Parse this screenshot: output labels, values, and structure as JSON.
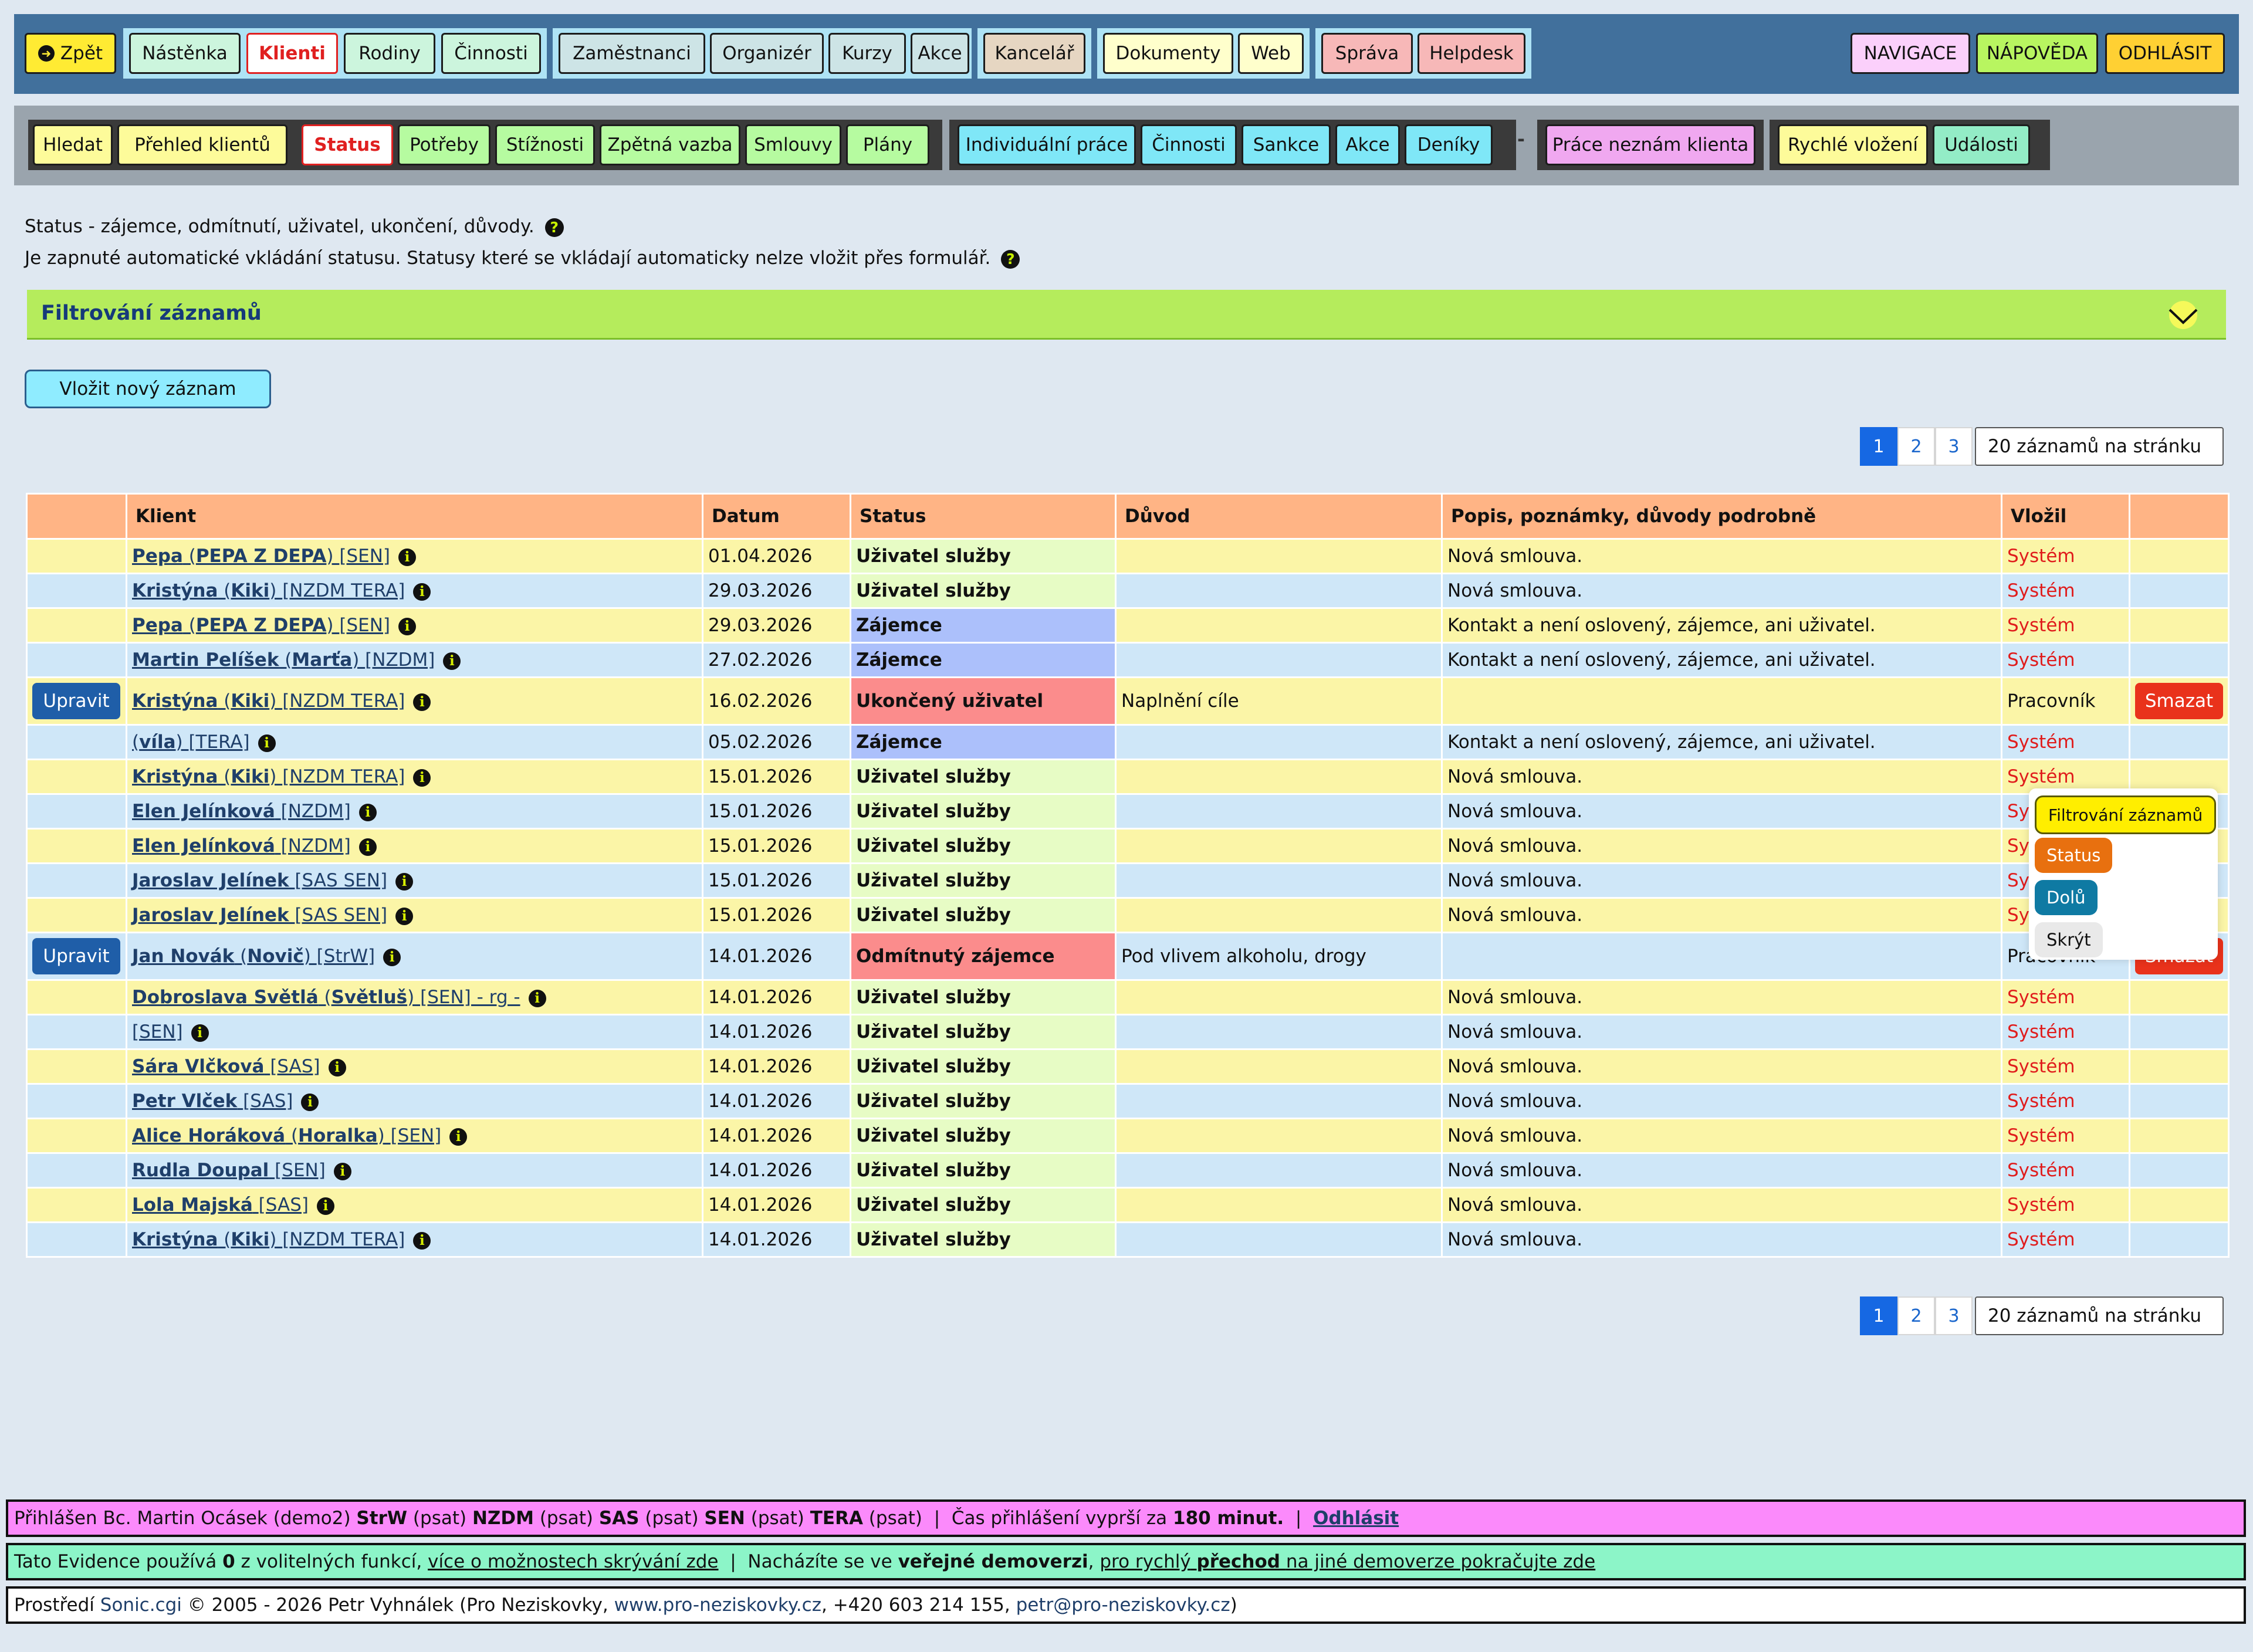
{
  "nav": {
    "back": "Zpět",
    "group1": [
      "Nástěnka",
      "Klienti",
      "Rodiny",
      "Činnosti"
    ],
    "group2": [
      "Zaměstnanci",
      "Organizér",
      "Kurzy",
      "Akce"
    ],
    "group3": [
      "Kancelář"
    ],
    "group4": [
      "Dokumenty",
      "Web"
    ],
    "group5": [
      "Správa",
      "Helpdesk"
    ],
    "right": [
      "NAVIGACE",
      "NÁPOVĚDA",
      "ODHLÁSIT"
    ]
  },
  "subnav": {
    "g1": [
      "Hledat",
      "Přehled klientů"
    ],
    "g2": [
      "Status",
      "Potřeby",
      "Stížnosti",
      "Zpětná vazba",
      "Smlouvy",
      "Plány"
    ],
    "g3": [
      "Individuální práce",
      "Činnosti",
      "Sankce",
      "Akce",
      "Deníky"
    ],
    "separator": "-",
    "g4": [
      "Práce neznám klienta"
    ],
    "g5": [
      "Rychlé vložení",
      "Události"
    ]
  },
  "info": {
    "line1": "Status - zájemce, odmítnutí, uživatel, ukončení, důvody.",
    "line2": "Je zapnuté automatické vkládání statusu. Statusy které se vkládají automaticky nelze vložit přes formulář.",
    "help": "?"
  },
  "filter": {
    "title": "Filtrování záznamů"
  },
  "insert_button": "Vložit nový záznam",
  "pager": {
    "pages": [
      "1",
      "2",
      "3"
    ],
    "active": "1",
    "per_page": "20 záznamů na stránku"
  },
  "table": {
    "headers": [
      "",
      "Klient",
      "Datum",
      "Status",
      "Důvod",
      "Popis, poznámky, důvody podrobně",
      "Vložil",
      ""
    ],
    "edit_label": "Upravit",
    "delete_label": "Smazat",
    "info_icon": "i",
    "rows": [
      {
        "name": "Pepa",
        "nick": "PEPA Z DEPA",
        "tags": "[SEN]",
        "date": "01.04.2026",
        "status": "Uživatel služby",
        "st": "user",
        "reason": "",
        "desc": "Nová smlouva.",
        "by": "Systém",
        "actions": false
      },
      {
        "name": "Kristýna",
        "nick": "Kiki",
        "tags": "[NZDM TERA]",
        "date": "29.03.2026",
        "status": "Uživatel služby",
        "st": "user",
        "reason": "",
        "desc": "Nová smlouva.",
        "by": "Systém",
        "actions": false
      },
      {
        "name": "Pepa",
        "nick": "PEPA Z DEPA",
        "tags": "[SEN]",
        "date": "29.03.2026",
        "status": "Zájemce",
        "st": "zaj",
        "reason": "",
        "desc": "Kontakt a není oslovený, zájemce, ani uživatel.",
        "by": "Systém",
        "actions": false
      },
      {
        "name": "Martin Pelíšek",
        "nick": "Marťa",
        "tags": "[NZDM]",
        "date": "27.02.2026",
        "status": "Zájemce",
        "st": "zaj",
        "reason": "",
        "desc": "Kontakt a není oslovený, zájemce, ani uživatel.",
        "by": "Systém",
        "actions": false
      },
      {
        "name": "Kristýna",
        "nick": "Kiki",
        "tags": "[NZDM TERA]",
        "date": "16.02.2026",
        "status": "Ukončený uživatel",
        "st": "uk",
        "reason": "Naplnění cíle",
        "desc": "",
        "by": "Pracovník",
        "actions": true
      },
      {
        "name": "",
        "nick": "víla",
        "tags": "[TERA]",
        "date": "05.02.2026",
        "status": "Zájemce",
        "st": "zaj",
        "reason": "",
        "desc": "Kontakt a není oslovený, zájemce, ani uživatel.",
        "by": "Systém",
        "actions": false
      },
      {
        "name": "Kristýna",
        "nick": "Kiki",
        "tags": "[NZDM TERA]",
        "date": "15.01.2026",
        "status": "Uživatel služby",
        "st": "user",
        "reason": "",
        "desc": "Nová smlouva.",
        "by": "Systém",
        "actions": false
      },
      {
        "name": "Elen Jelínková",
        "nick": "",
        "tags": "[NZDM]",
        "date": "15.01.2026",
        "status": "Uživatel služby",
        "st": "user",
        "reason": "",
        "desc": "Nová smlouva.",
        "by": "Systém",
        "actions": false
      },
      {
        "name": "Elen Jelínková",
        "nick": "",
        "tags": "[NZDM]",
        "date": "15.01.2026",
        "status": "Uživatel služby",
        "st": "user",
        "reason": "",
        "desc": "Nová smlouva.",
        "by": "Systém",
        "actions": false
      },
      {
        "name": "Jaroslav Jelínek",
        "nick": "",
        "tags": "[SAS SEN]",
        "date": "15.01.2026",
        "status": "Uživatel služby",
        "st": "user",
        "reason": "",
        "desc": "Nová smlouva.",
        "by": "Systém",
        "actions": false
      },
      {
        "name": "Jaroslav Jelínek",
        "nick": "",
        "tags": "[SAS SEN]",
        "date": "15.01.2026",
        "status": "Uživatel služby",
        "st": "user",
        "reason": "",
        "desc": "Nová smlouva.",
        "by": "Systém",
        "actions": false
      },
      {
        "name": "Jan Novák",
        "nick": "Novič",
        "tags": "[StrW]",
        "date": "14.01.2026",
        "status": "Odmítnutý zájemce",
        "st": "odm",
        "reason": "Pod vlivem alkoholu, drogy",
        "desc": "",
        "by": "Pracovník",
        "actions": true
      },
      {
        "name": "Dobroslava Světlá",
        "nick": "Světluš",
        "tags": "[SEN] - rg -",
        "date": "14.01.2026",
        "status": "Uživatel služby",
        "st": "user",
        "reason": "",
        "desc": "Nová smlouva.",
        "by": "Systém",
        "actions": false
      },
      {
        "name": "",
        "nick": "",
        "tags": "[SEN]",
        "date": "14.01.2026",
        "status": "Uživatel služby",
        "st": "user",
        "reason": "",
        "desc": "Nová smlouva.",
        "by": "Systém",
        "actions": false
      },
      {
        "name": "Sára Vlčková",
        "nick": "",
        "tags": "[SAS]",
        "date": "14.01.2026",
        "status": "Uživatel služby",
        "st": "user",
        "reason": "",
        "desc": "Nová smlouva.",
        "by": "Systém",
        "actions": false
      },
      {
        "name": "Petr Vlček",
        "nick": "",
        "tags": "[SAS]",
        "date": "14.01.2026",
        "status": "Uživatel služby",
        "st": "user",
        "reason": "",
        "desc": "Nová smlouva.",
        "by": "Systém",
        "actions": false
      },
      {
        "name": "Alice Horáková",
        "nick": "Horalka",
        "tags": "[SEN]",
        "date": "14.01.2026",
        "status": "Uživatel služby",
        "st": "user",
        "reason": "",
        "desc": "Nová smlouva.",
        "by": "Systém",
        "actions": false
      },
      {
        "name": "Rudla Doupal",
        "nick": "",
        "tags": "[SEN]",
        "date": "14.01.2026",
        "status": "Uživatel služby",
        "st": "user",
        "reason": "",
        "desc": "Nová smlouva.",
        "by": "Systém",
        "actions": false
      },
      {
        "name": "Lola Majská",
        "nick": "",
        "tags": "[SAS]",
        "date": "14.01.2026",
        "status": "Uživatel služby",
        "st": "user",
        "reason": "",
        "desc": "Nová smlouva.",
        "by": "Systém",
        "actions": false
      },
      {
        "name": "Kristýna",
        "nick": "Kiki",
        "tags": "[NZDM TERA]",
        "date": "14.01.2026",
        "status": "Uživatel služby",
        "st": "user",
        "reason": "",
        "desc": "Nová smlouva.",
        "by": "Systém",
        "actions": false
      }
    ]
  },
  "float_menu": [
    "Filtrování záznamů",
    "Status",
    "Dolů",
    "Skrýt"
  ],
  "footer": {
    "login_prefix": "Přihlášen Bc. Martin Ocásek (demo2)",
    "services": [
      {
        "code": "StrW",
        "note": "(psat)"
      },
      {
        "code": "NZDM",
        "note": "(psat)"
      },
      {
        "code": "SAS",
        "note": "(psat)"
      },
      {
        "code": "SEN",
        "note": "(psat)"
      },
      {
        "code": "TERA",
        "note": "(psat)"
      }
    ],
    "sep": "|",
    "expire_text": "Čas přihlášení vyprší za",
    "expire_value": "180 minut.",
    "logout": "Odhlásit",
    "line2_a": "Tato Evidence používá",
    "line2_count": "0",
    "line2_b": "z volitelných funkcí,",
    "line2_link1": "více o možnostech skrývání zde",
    "line2_c": "Nacházíte se ve",
    "line2_bold": "veřejné demoverzi",
    "line2_link2a": "pro rychlý",
    "line2_link2b": "přechod",
    "line2_link2c": "na jiné demoverze pokračujte zde",
    "line3_a": "Prostředí",
    "line3_link1": "Sonic.cgi",
    "line3_b": "© 2005 - 2026 Petr Vyhnálek (Pro Neziskovky,",
    "line3_link2": "www.pro-neziskovky.cz",
    "line3_c": ", +420 603 214 155,",
    "line3_link3": "petr@pro-neziskovky.cz",
    "line3_d": ")"
  }
}
